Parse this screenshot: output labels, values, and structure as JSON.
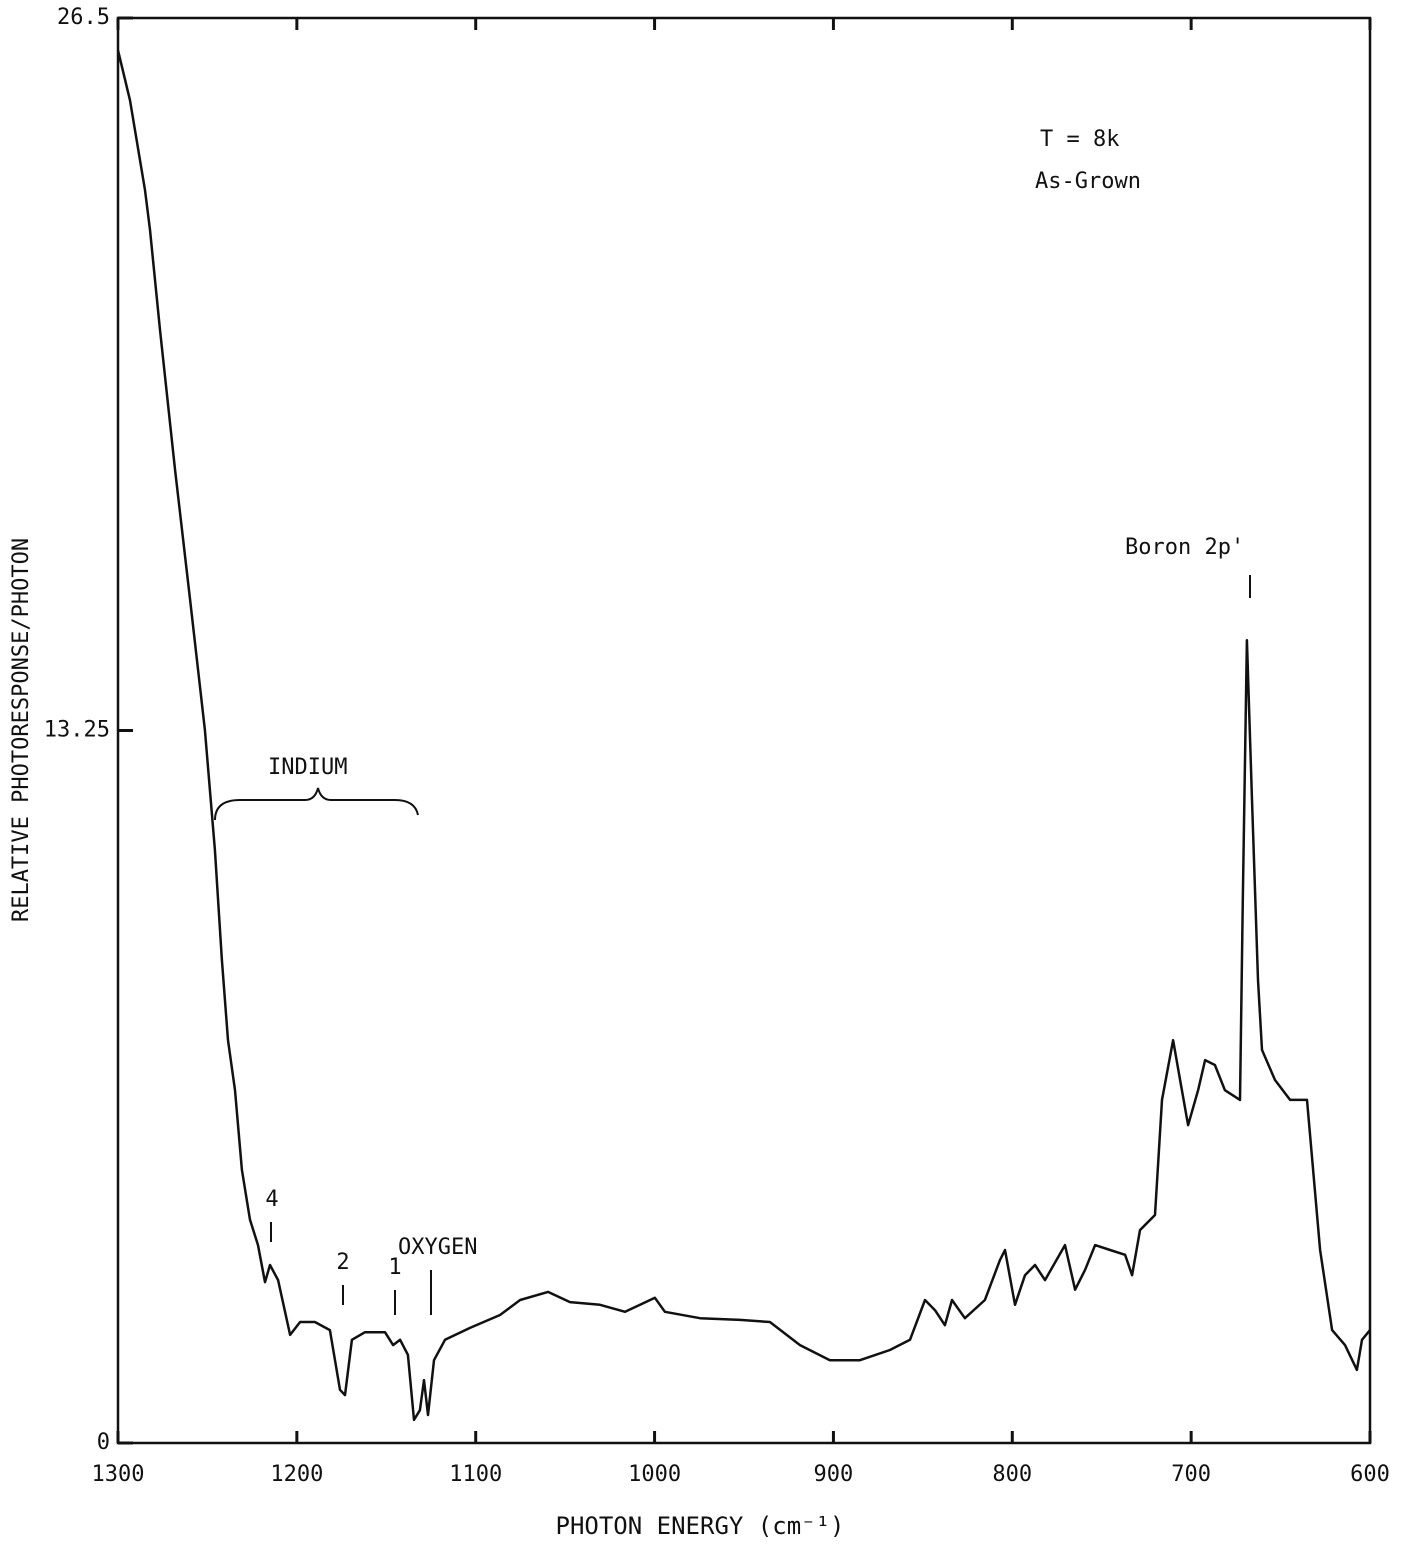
{
  "chart_data": {
    "type": "line",
    "y_label": "RELATIVE PHOTORESPONSE/PHOTON",
    "x_label": "PHOTON ENERGY (cm⁻¹)",
    "xlim": [
      1300,
      600
    ],
    "xticks": [
      1300,
      1200,
      1100,
      1000,
      900,
      800,
      700,
      600
    ],
    "ylim": [
      0,
      26.5
    ],
    "yticks": [
      0,
      13.25,
      26.5
    ],
    "color": "#111111",
    "annotations": [
      "T = 8k",
      "As-Grown",
      "Boron 2p'",
      "INDIUM",
      "OXYGEN",
      "4",
      "2",
      "1"
    ],
    "x": [
      1300,
      1293.3,
      1284.9,
      1282.1,
      1276.5,
      1268.1,
      1259.7,
      1251.4,
      1245.8,
      1241.9,
      1238.5,
      1234.6,
      1230.7,
      1226.2,
      1221.7,
      1217.8,
      1215.0,
      1210.5,
      1203.8,
      1198.2,
      1189.9,
      1181.5,
      1175.9,
      1173.1,
      1169.2,
      1161.9,
      1150.7,
      1146.2,
      1142.3,
      1137.9,
      1134.5,
      1131.2,
      1128.9,
      1126.7,
      1123.3,
      1117.2,
      1103.2,
      1086.4,
      1075.2,
      1059.6,
      1047.3,
      1030.5,
      1016.5,
      999.8,
      994.2,
      974.6,
      952.3,
      935.5,
      918.7,
      902.0,
      885.2,
      868.4,
      857.2,
      848.8,
      843.2,
      837.7,
      833.7,
      826.5,
      815.3,
      806.9,
      804.1,
      798.5,
      792.9,
      787.3,
      781.7,
      770.5,
      764.9,
      759.3,
      753.7,
      745.3,
      736.9,
      733.0,
      728.6,
      720.2,
      716.3,
      710.1,
      706.2,
      701.7,
      696.1,
      692.2,
      686.7,
      681.1,
      672.7,
      671.1,
      668.8,
      666.0,
      662.6,
      660.4,
      653.1,
      644.7,
      639.2,
      635.2,
      627.9,
      621.2,
      614.0,
      607.3,
      604.5,
      600.0
    ],
    "values": [
      25.9,
      24.97,
      23.3,
      22.56,
      20.7,
      18.09,
      15.68,
      13.26,
      11.03,
      8.98,
      7.49,
      6.56,
      5.08,
      4.15,
      3.68,
      2.99,
      3.31,
      3.03,
      2.01,
      2.25,
      2.25,
      2.1,
      0.99,
      0.89,
      1.92,
      2.06,
      2.06,
      1.82,
      1.92,
      1.64,
      0.43,
      0.61,
      1.17,
      0.52,
      1.54,
      1.92,
      2.14,
      2.38,
      2.66,
      2.81,
      2.62,
      2.57,
      2.44,
      2.7,
      2.44,
      2.32,
      2.29,
      2.25,
      1.82,
      1.54,
      1.54,
      1.73,
      1.92,
      2.66,
      2.47,
      2.19,
      2.66,
      2.32,
      2.66,
      3.4,
      3.59,
      2.57,
      3.12,
      3.31,
      3.03,
      3.68,
      2.85,
      3.22,
      3.68,
      3.59,
      3.5,
      3.12,
      3.96,
      4.24,
      6.38,
      7.49,
      6.75,
      5.91,
      6.56,
      7.12,
      7.03,
      6.56,
      6.38,
      10.1,
      14.93,
      11.96,
      8.61,
      7.31,
      6.75,
      6.38,
      6.38,
      6.38,
      3.59,
      2.1,
      1.82,
      1.36,
      1.92,
      2.1
    ]
  }
}
